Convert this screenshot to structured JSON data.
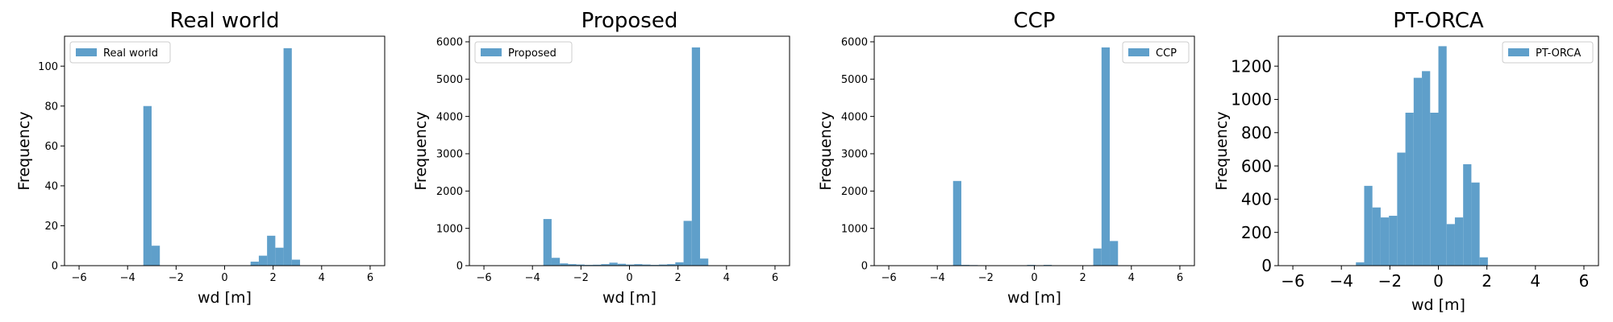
{
  "bar_color": "#5f9fca",
  "chart_data": [
    {
      "type": "bar",
      "title": "Real world",
      "xlabel": "wd [m]",
      "ylabel": "Frequency",
      "legend": "Real world",
      "legend_loc": "upper left",
      "xlim": [
        -6.6,
        6.6
      ],
      "ylim": [
        0,
        115
      ],
      "xticks": [
        -6,
        -4,
        -2,
        0,
        2,
        4,
        6
      ],
      "yticks": [
        0,
        20,
        40,
        60,
        80,
        100
      ],
      "bin_width": 0.34,
      "bins": [
        {
          "x0": -3.35,
          "v": 80
        },
        {
          "x0": -3.01,
          "v": 10
        },
        {
          "x0": 1.07,
          "v": 2
        },
        {
          "x0": 1.41,
          "v": 5
        },
        {
          "x0": 1.75,
          "v": 15
        },
        {
          "x0": 2.09,
          "v": 9
        },
        {
          "x0": 2.43,
          "v": 109
        },
        {
          "x0": 2.77,
          "v": 3
        }
      ],
      "tick_fontsize": "small",
      "label_fontsize": "large"
    },
    {
      "type": "bar",
      "title": "Proposed",
      "xlabel": "wd [m]",
      "ylabel": "Frequency",
      "legend": "Proposed",
      "legend_loc": "upper left",
      "xlim": [
        -6.6,
        6.6
      ],
      "ylim": [
        0,
        6150
      ],
      "xticks": [
        -6,
        -4,
        -2,
        0,
        2,
        4,
        6
      ],
      "yticks": [
        0,
        1000,
        2000,
        3000,
        4000,
        5000,
        6000
      ],
      "bin_width": 0.34,
      "bins": [
        {
          "x0": -3.55,
          "v": 1250
        },
        {
          "x0": -3.21,
          "v": 210
        },
        {
          "x0": -2.87,
          "v": 60
        },
        {
          "x0": -2.53,
          "v": 40
        },
        {
          "x0": -2.19,
          "v": 30
        },
        {
          "x0": -1.85,
          "v": 20
        },
        {
          "x0": -1.51,
          "v": 25
        },
        {
          "x0": -1.17,
          "v": 40
        },
        {
          "x0": -0.83,
          "v": 80
        },
        {
          "x0": -0.49,
          "v": 50
        },
        {
          "x0": -0.15,
          "v": 30
        },
        {
          "x0": 0.19,
          "v": 40
        },
        {
          "x0": 0.53,
          "v": 30
        },
        {
          "x0": 0.87,
          "v": 20
        },
        {
          "x0": 1.21,
          "v": 30
        },
        {
          "x0": 1.55,
          "v": 40
        },
        {
          "x0": 1.89,
          "v": 90
        },
        {
          "x0": 2.23,
          "v": 1200
        },
        {
          "x0": 2.57,
          "v": 5850
        },
        {
          "x0": 2.91,
          "v": 190
        }
      ],
      "tick_fontsize": "small",
      "label_fontsize": "large"
    },
    {
      "type": "bar",
      "title": "CCP",
      "xlabel": "wd [m]",
      "ylabel": "Frequency",
      "legend": "CCP",
      "legend_loc": "upper right",
      "xlim": [
        -6.6,
        6.6
      ],
      "ylim": [
        0,
        6150
      ],
      "xticks": [
        -6,
        -4,
        -2,
        0,
        2,
        4,
        6
      ],
      "yticks": [
        0,
        1000,
        2000,
        3000,
        4000,
        5000,
        6000
      ],
      "bin_width": 0.34,
      "bins": [
        {
          "x0": -3.35,
          "v": 2270
        },
        {
          "x0": -3.01,
          "v": 20
        },
        {
          "x0": -2.67,
          "v": 15
        },
        {
          "x0": -2.33,
          "v": 10
        },
        {
          "x0": -0.3,
          "v": 20
        },
        {
          "x0": 0.38,
          "v": 20
        },
        {
          "x0": 2.43,
          "v": 460
        },
        {
          "x0": 2.77,
          "v": 5850
        },
        {
          "x0": 3.11,
          "v": 660
        }
      ],
      "tick_fontsize": "small",
      "label_fontsize": "large"
    },
    {
      "type": "bar",
      "title": "PT-ORCA",
      "xlabel": "wd [m]",
      "ylabel": "Frequency",
      "legend": "PT-ORCA",
      "legend_loc": "upper right",
      "xlim": [
        -6.6,
        6.6
      ],
      "ylim": [
        0,
        1380
      ],
      "xticks": [
        -6,
        -4,
        -2,
        0,
        2,
        4,
        6
      ],
      "yticks": [
        0,
        200,
        400,
        600,
        800,
        1000,
        1200
      ],
      "bin_width": 0.34,
      "bins": [
        {
          "x0": -3.4,
          "v": 20
        },
        {
          "x0": -3.06,
          "v": 480
        },
        {
          "x0": -2.72,
          "v": 350
        },
        {
          "x0": -2.38,
          "v": 290
        },
        {
          "x0": -2.04,
          "v": 300
        },
        {
          "x0": -1.7,
          "v": 680
        },
        {
          "x0": -1.36,
          "v": 920
        },
        {
          "x0": -1.02,
          "v": 1130
        },
        {
          "x0": -0.68,
          "v": 1170
        },
        {
          "x0": -0.34,
          "v": 920
        },
        {
          "x0": 0.0,
          "v": 1320
        },
        {
          "x0": 0.34,
          "v": 250
        },
        {
          "x0": 0.68,
          "v": 290
        },
        {
          "x0": 1.02,
          "v": 610
        },
        {
          "x0": 1.36,
          "v": 500
        },
        {
          "x0": 1.7,
          "v": 50
        }
      ],
      "tick_fontsize": "large",
      "label_fontsize": "large"
    }
  ]
}
